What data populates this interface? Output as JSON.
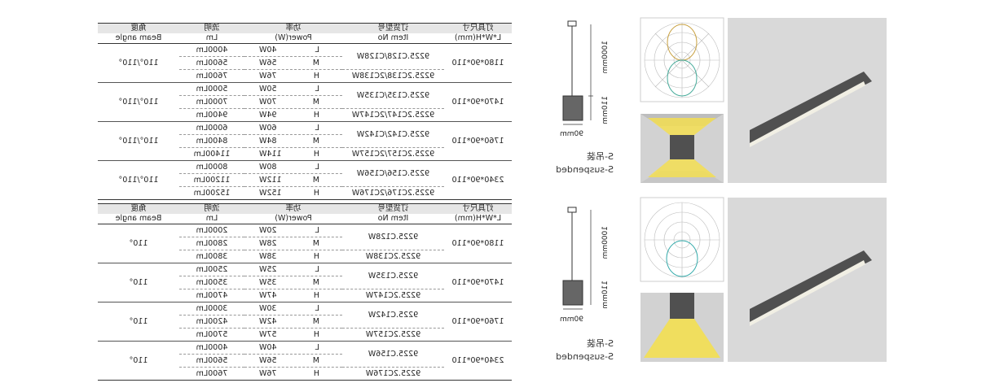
{
  "headers": [
    {
      "cn": "灯具尺寸",
      "en": "L*W*H(mm)"
    },
    {
      "cn": "订货型号",
      "en": "Item No"
    },
    {
      "cn": "功率",
      "en": "Power(W)"
    },
    {
      "cn": "流明",
      "en": "Lm"
    },
    {
      "cn": "角度",
      "en": "Beam angle"
    }
  ],
  "tables": [
    {
      "groups": [
        {
          "size": "1180*90*110",
          "items": [
            "9225.C128/C128W",
            "9225.2C138/2C138W"
          ],
          "angle": "110°/110°",
          "rows": [
            {
              "grade": "L",
              "power": "40W",
              "lumen": "4000Lm"
            },
            {
              "grade": "M",
              "power": "56W",
              "lumen": "5600Lm"
            },
            {
              "grade": "H",
              "power": "76W",
              "lumen": "7600Lm"
            }
          ]
        },
        {
          "size": "1470*90*110",
          "items": [
            "9225.C135/C135W",
            "9225.2C147/2C147W"
          ],
          "angle": "110°/110°",
          "rows": [
            {
              "grade": "L",
              "power": "50W",
              "lumen": "5000Lm"
            },
            {
              "grade": "M",
              "power": "70W",
              "lumen": "7000Lm"
            },
            {
              "grade": "H",
              "power": "94W",
              "lumen": "9400Lm"
            }
          ]
        },
        {
          "size": "1760*90*110",
          "items": [
            "9225.C142/C142W",
            "9225.2C157/2C157W"
          ],
          "angle": "110°/110°",
          "rows": [
            {
              "grade": "L",
              "power": "60W",
              "lumen": "6000Lm"
            },
            {
              "grade": "M",
              "power": "84W",
              "lumen": "8400Lm"
            },
            {
              "grade": "H",
              "power": "114W",
              "lumen": "11400Lm"
            }
          ]
        },
        {
          "size": "2340*90*110",
          "items": [
            "9225.C156/C156W",
            "9225.2C176/2C176W"
          ],
          "angle": "110°/110°",
          "rows": [
            {
              "grade": "L",
              "power": "80W",
              "lumen": "8000Lm"
            },
            {
              "grade": "M",
              "power": "112W",
              "lumen": "11200Lm"
            },
            {
              "grade": "H",
              "power": "152W",
              "lumen": "15200Lm"
            }
          ]
        }
      ]
    },
    {
      "groups": [
        {
          "size": "1180*90*110",
          "items": [
            "9225.C128W",
            "9225.2C138W"
          ],
          "angle": "110°",
          "rows": [
            {
              "grade": "L",
              "power": "20W",
              "lumen": "2000Lm"
            },
            {
              "grade": "M",
              "power": "28W",
              "lumen": "2800Lm"
            },
            {
              "grade": "H",
              "power": "38W",
              "lumen": "3800Lm"
            }
          ]
        },
        {
          "size": "1470*90*110",
          "items": [
            "9225.C135W",
            "9225.2C147W"
          ],
          "angle": "110°",
          "rows": [
            {
              "grade": "L",
              "power": "25W",
              "lumen": "2500Lm"
            },
            {
              "grade": "M",
              "power": "35W",
              "lumen": "3500Lm"
            },
            {
              "grade": "H",
              "power": "47W",
              "lumen": "4700Lm"
            }
          ]
        },
        {
          "size": "1760*90*110",
          "items": [
            "9225.C142W",
            "9225.2C157W"
          ],
          "angle": "110°",
          "rows": [
            {
              "grade": "L",
              "power": "30W",
              "lumen": "3000Lm"
            },
            {
              "grade": "M",
              "power": "42W",
              "lumen": "4200Lm"
            },
            {
              "grade": "H",
              "power": "57W",
              "lumen": "5700Lm"
            }
          ]
        },
        {
          "size": "2340*90*110",
          "items": [
            "9225.C156W",
            "9225.2C176W"
          ],
          "angle": "110°",
          "rows": [
            {
              "grade": "L",
              "power": "40W",
              "lumen": "4000Lm"
            },
            {
              "grade": "M",
              "power": "56W",
              "lumen": "5600Lm"
            },
            {
              "grade": "H",
              "power": "76W",
              "lumen": "7600Lm"
            }
          ]
        }
      ]
    }
  ],
  "drawings": [
    {
      "height": "1000mm",
      "box": "110mm",
      "width": "90mm",
      "mount_cn": "S-吊装",
      "mount_en": "S-suspended"
    },
    {
      "height": "1000mm",
      "box": "110mm",
      "width": "90mm",
      "mount_cn": "S-吊装",
      "mount_en": "S-suspended"
    }
  ]
}
